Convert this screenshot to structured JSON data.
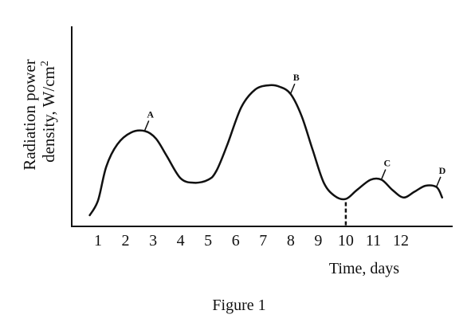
{
  "chart_data": {
    "type": "line",
    "ylabel_line1": "Radiation power",
    "ylabel_line2": "density, W/cm",
    "ylabel_sup": "2",
    "xlabel": "Time, days",
    "caption": "Figure 1",
    "xlim": [
      0.5,
      13.5
    ],
    "ylim": [
      0,
      10
    ],
    "y_ticks_shown": false,
    "grid": false,
    "ticks": [
      {
        "value": 1,
        "label": "1"
      },
      {
        "value": 2,
        "label": "2"
      },
      {
        "value": 3,
        "label": "3"
      },
      {
        "value": 4,
        "label": "4"
      },
      {
        "value": 5,
        "label": "5"
      },
      {
        "value": 6,
        "label": "6"
      },
      {
        "value": 7,
        "label": "7"
      },
      {
        "value": 8,
        "label": "8"
      },
      {
        "value": 9,
        "label": "9"
      },
      {
        "value": 10,
        "label": "10"
      },
      {
        "value": 11,
        "label": "11"
      },
      {
        "value": 12,
        "label": "12"
      }
    ],
    "series": [
      {
        "x": [
          0.7,
          1.0,
          1.3,
          1.7,
          2.2,
          2.7,
          3.1,
          3.5,
          4.0,
          4.5,
          5.0,
          5.3,
          5.7,
          6.2,
          6.7,
          7.2,
          7.6,
          8.0,
          8.4,
          8.8,
          9.2,
          9.6,
          10.0,
          10.4,
          10.9,
          11.3,
          11.7,
          12.1,
          12.5,
          12.9,
          13.3,
          13.5
        ],
        "y": [
          0.2,
          1.2,
          3.5,
          5.0,
          5.8,
          5.9,
          5.4,
          4.2,
          2.7,
          2.4,
          2.6,
          3.2,
          5.0,
          7.5,
          8.7,
          9.0,
          8.9,
          8.4,
          6.9,
          4.6,
          2.4,
          1.5,
          1.3,
          1.9,
          2.6,
          2.6,
          1.9,
          1.4,
          1.8,
          2.2,
          2.1,
          1.4
        ]
      }
    ],
    "annotations": [
      {
        "label": "A",
        "x": 2.7,
        "y": 5.9
      },
      {
        "label": "B",
        "x": 8.0,
        "y": 8.4
      },
      {
        "label": "C",
        "x": 11.3,
        "y": 2.6
      },
      {
        "label": "D",
        "x": 13.3,
        "y": 2.1
      }
    ],
    "marker_line": {
      "x": 10.0,
      "y_top": 1.3
    }
  }
}
